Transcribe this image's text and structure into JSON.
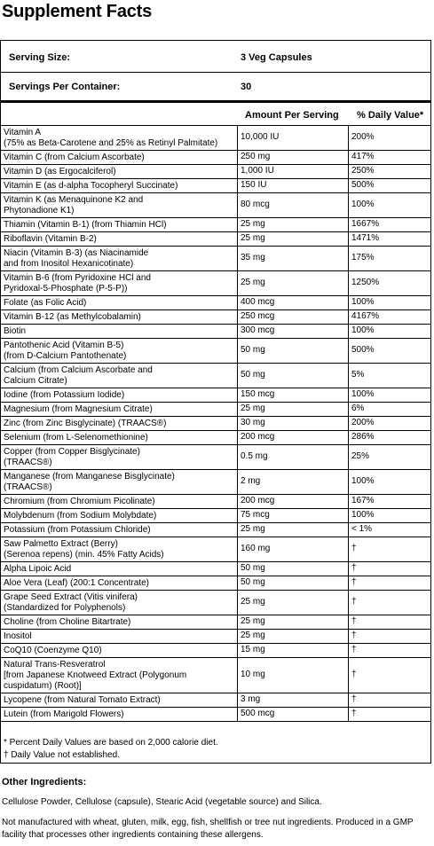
{
  "title": "Supplement Facts",
  "serving_size_label": "Serving Size:",
  "serving_size_value": "3 Veg Capsules",
  "servings_label": "Servings Per Container:",
  "servings_value": "30",
  "col_amount": "Amount Per Serving",
  "col_dv": "% Daily Value*",
  "rows": [
    {
      "name": "Vitamin A\n(75% as Beta-Carotene and 25% as Retinyl Palmitate)",
      "amount": "10,000 IU",
      "dv": "200%"
    },
    {
      "name": "Vitamin C (from Calcium Ascorbate)",
      "amount": "250 mg",
      "dv": "417%"
    },
    {
      "name": "Vitamin D (as Ergocalciferol)",
      "amount": "1,000 IU",
      "dv": "250%"
    },
    {
      "name": "Vitamin E (as d-alpha Tocopheryl Succinate)",
      "amount": "150 IU",
      "dv": "500%"
    },
    {
      "name": "Vitamin K (as Menaquinone K2 and\nPhytonadione K1)",
      "amount": "80 mcg",
      "dv": "100%"
    },
    {
      "name": "Thiamin (Vitamin B-1) (from Thiamin HCl)",
      "amount": "25 mg",
      "dv": "1667%"
    },
    {
      "name": "Riboflavin (Vitamin B-2)",
      "amount": "25 mg",
      "dv": "1471%"
    },
    {
      "name": "Niacin (Vitamin B-3) (as Niacinamide\nand from Inositol Hexanicotinate)",
      "amount": "35 mg",
      "dv": "175%"
    },
    {
      "name": "Vitamin B-6 (from Pyridoxine HCl and\nPyridoxal-5-Phosphate (P-5-P))",
      "amount": "25 mg",
      "dv": "1250%"
    },
    {
      "name": "Folate (as Folic Acid)",
      "amount": "400 mcg",
      "dv": "100%"
    },
    {
      "name": "Vitamin B-12 (as Methylcobalamin)",
      "amount": "250 mcg",
      "dv": "4167%"
    },
    {
      "name": "Biotin",
      "amount": "300 mcg",
      "dv": "100%"
    },
    {
      "name": "Pantothenic Acid (Vitamin B-5)\n(from D-Calcium Pantothenate)",
      "amount": "50 mg",
      "dv": "500%"
    },
    {
      "name": "Calcium (from Calcium Ascorbate and\nCalcium Citrate)",
      "amount": "50 mg",
      "dv": "5%"
    },
    {
      "name": "Iodine (from Potassium Iodide)",
      "amount": "150 mcg",
      "dv": "100%"
    },
    {
      "name": "Magnesium (from Magnesium Citrate)",
      "amount": "25 mg",
      "dv": "6%"
    },
    {
      "name": "Zinc (from Zinc Bisglycinate) (TRAACS®)",
      "amount": "30 mg",
      "dv": "200%"
    },
    {
      "name": "Selenium (from L-Selenomethionine)",
      "amount": "200 mcg",
      "dv": "286%"
    },
    {
      "name": "Copper (from Copper Bisglycinate)\n      (TRAACS®)",
      "amount": "0.5 mg",
      "dv": "25%"
    },
    {
      "name": "Manganese (from Manganese Bisglycinate)\n(TRAACS®)",
      "amount": "2 mg",
      "dv": "100%"
    },
    {
      "name": "Chromium (from Chromium Picolinate)",
      "amount": "200 mcg",
      "dv": "167%"
    },
    {
      "name": "Molybdenum (from Sodium Molybdate)",
      "amount": "75 mcg",
      "dv": "100%"
    },
    {
      "name": "Potassium (from Potassium Chloride)",
      "amount": "25 mg",
      "dv": "< 1%"
    },
    {
      "name": "Saw Palmetto Extract (Berry)\n(Serenoa repens) (min. 45% Fatty Acids)",
      "amount": "160 mg",
      "dv": "†"
    },
    {
      "name": "Alpha Lipoic Acid",
      "amount": "50 mg",
      "dv": "†"
    },
    {
      "name": "Aloe Vera (Leaf) (200:1 Concentrate)",
      "amount": "50 mg",
      "dv": "†"
    },
    {
      "name": "Grape Seed Extract (Vitis vinifera)\n(Standardized for Polyphenols)",
      "amount": "25 mg",
      "dv": "†"
    },
    {
      "name": "Choline (from Choline Bitartrate)",
      "amount": "25 mg",
      "dv": "†"
    },
    {
      "name": "Inositol",
      "amount": "25 mg",
      "dv": "†"
    },
    {
      "name": "CoQ10 (Coenzyme Q10)",
      "amount": "15 mg",
      "dv": "†"
    },
    {
      "name": "Natural Trans-Resveratrol\n[from Japanese Knotweed Extract (Polygonum\ncuspidatum) (Root)]",
      "amount": "10 mg",
      "dv": "†"
    },
    {
      "name": "Lycopene (from Natural Tomato Extract)",
      "amount": "3 mg",
      "dv": "†"
    },
    {
      "name": "Lutein (from Marigold Flowers)",
      "amount": "500 mcg",
      "dv": "†"
    }
  ],
  "footnote_1": "* Percent Daily Values are based on 2,000 calorie diet.",
  "footnote_2": "† Daily Value not established.",
  "other_title": "Other Ingredients:",
  "other_text": "Cellulose Powder, Cellulose (capsule), Stearic Acid (vegetable source) and Silica.",
  "allergen_text": "Not manufactured with wheat, gluten, milk, egg, fish, shellfish or tree nut ingredients. Produced in a GMP facility that processes other ingredients containing these allergens."
}
